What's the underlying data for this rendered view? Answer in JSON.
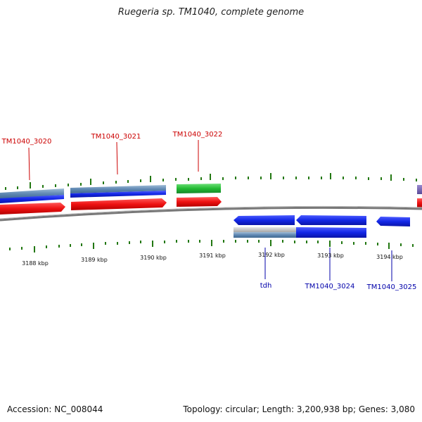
{
  "title": "Ruegeria sp. TM1040, complete genome",
  "footer": {
    "accession": "Accession: NC_008044",
    "summary": "Topology: circular; Length: 3,200,938 bp; Genes: 3,080"
  },
  "colors": {
    "cds_red": "#ee1111",
    "gene_blue": "#1122ee",
    "rna_green": "#22bb33",
    "tick_green": "#227711",
    "backbone_gray": "#777777",
    "label_red": "#cc0000",
    "label_blue": "#0000aa",
    "steelblue": "#5a86b0",
    "purple": "#6a5aa8"
  },
  "scale_labels": [
    "3188 kbp",
    "3189 kbp",
    "3190 kbp",
    "3191 kbp",
    "3192 kbp",
    "3193 kbp",
    "3194 kbp"
  ],
  "gene_labels_top": [
    "TM1040_3020",
    "TM1040_3021",
    "TM1040_3022"
  ],
  "gene_labels_bottom": [
    "tdh",
    "TM1040_3024",
    "TM1040_3025"
  ]
}
